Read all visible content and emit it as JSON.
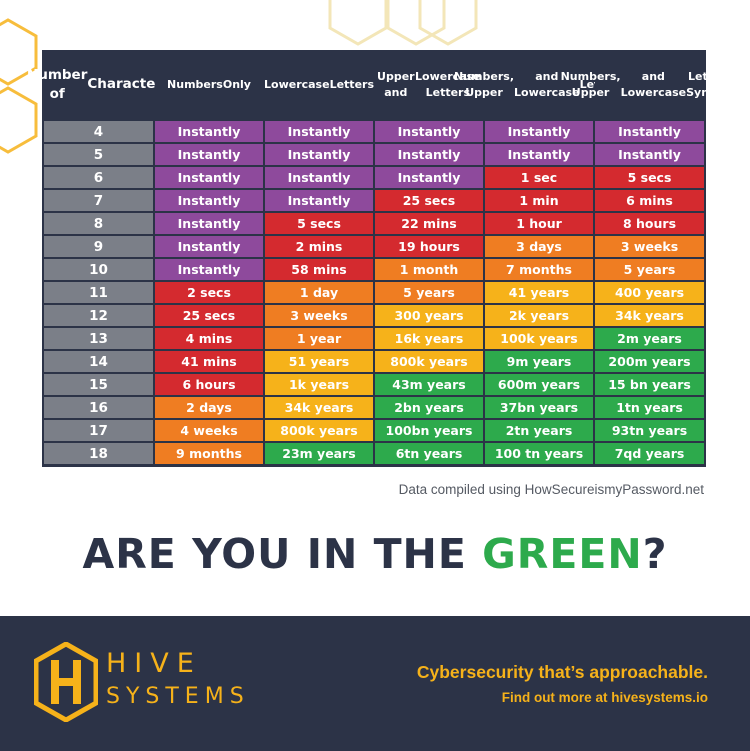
{
  "chart_data": {
    "type": "table",
    "title": "",
    "columns": [
      "Number of Characters",
      "Numbers Only",
      "Lowercase Letters",
      "Upper and Lowercase Letters",
      "Numbers, Upper and Lowercase Letters",
      "Numbers, Upper and Lowercase Letters, Symbols"
    ],
    "rows": [
      {
        "chars": "4",
        "values": [
          "Instantly",
          "Instantly",
          "Instantly",
          "Instantly",
          "Instantly"
        ],
        "colors": [
          "purple",
          "purple",
          "purple",
          "purple",
          "purple"
        ]
      },
      {
        "chars": "5",
        "values": [
          "Instantly",
          "Instantly",
          "Instantly",
          "Instantly",
          "Instantly"
        ],
        "colors": [
          "purple",
          "purple",
          "purple",
          "purple",
          "purple"
        ]
      },
      {
        "chars": "6",
        "values": [
          "Instantly",
          "Instantly",
          "Instantly",
          "1 sec",
          "5 secs"
        ],
        "colors": [
          "purple",
          "purple",
          "purple",
          "red",
          "red"
        ]
      },
      {
        "chars": "7",
        "values": [
          "Instantly",
          "Instantly",
          "25 secs",
          "1 min",
          "6 mins"
        ],
        "colors": [
          "purple",
          "purple",
          "red",
          "red",
          "red"
        ]
      },
      {
        "chars": "8",
        "values": [
          "Instantly",
          "5 secs",
          "22 mins",
          "1 hour",
          "8 hours"
        ],
        "colors": [
          "purple",
          "red",
          "red",
          "red",
          "red"
        ]
      },
      {
        "chars": "9",
        "values": [
          "Instantly",
          "2 mins",
          "19 hours",
          "3 days",
          "3 weeks"
        ],
        "colors": [
          "purple",
          "red",
          "red",
          "orange",
          "orange"
        ]
      },
      {
        "chars": "10",
        "values": [
          "Instantly",
          "58 mins",
          "1 month",
          "7 months",
          "5 years"
        ],
        "colors": [
          "purple",
          "red",
          "orange",
          "orange",
          "orange"
        ]
      },
      {
        "chars": "11",
        "values": [
          "2 secs",
          "1 day",
          "5 years",
          "41 years",
          "400 years"
        ],
        "colors": [
          "red",
          "orange",
          "orange",
          "yellow",
          "yellow"
        ]
      },
      {
        "chars": "12",
        "values": [
          "25 secs",
          "3 weeks",
          "300 years",
          "2k years",
          "34k years"
        ],
        "colors": [
          "red",
          "orange",
          "yellow",
          "yellow",
          "yellow"
        ]
      },
      {
        "chars": "13",
        "values": [
          "4 mins",
          "1 year",
          "16k years",
          "100k years",
          "2m years"
        ],
        "colors": [
          "red",
          "orange",
          "yellow",
          "yellow",
          "green"
        ]
      },
      {
        "chars": "14",
        "values": [
          "41 mins",
          "51 years",
          "800k years",
          "9m years",
          "200m years"
        ],
        "colors": [
          "red",
          "yellow",
          "yellow",
          "green",
          "green"
        ]
      },
      {
        "chars": "15",
        "values": [
          "6 hours",
          "1k years",
          "43m years",
          "600m years",
          "15 bn years"
        ],
        "colors": [
          "red",
          "yellow",
          "green",
          "green",
          "green"
        ]
      },
      {
        "chars": "16",
        "values": [
          "2 days",
          "34k years",
          "2bn years",
          "37bn years",
          "1tn years"
        ],
        "colors": [
          "orange",
          "yellow",
          "green",
          "green",
          "green"
        ]
      },
      {
        "chars": "17",
        "values": [
          "4 weeks",
          "800k years",
          "100bn years",
          "2tn years",
          "93tn years"
        ],
        "colors": [
          "orange",
          "yellow",
          "green",
          "green",
          "green"
        ]
      },
      {
        "chars": "18",
        "values": [
          "9 months",
          "23m years",
          "6tn years",
          "100 tn years",
          "7qd years"
        ],
        "colors": [
          "orange",
          "green",
          "green",
          "green",
          "green"
        ]
      }
    ],
    "color_scale": {
      "purple": "#8e4a9c",
      "red": "#d42a2f",
      "orange": "#ef7d22",
      "yellow": "#f6b21a",
      "green": "#2daa4c"
    }
  },
  "header_lines": [
    [
      "Number of",
      "Characters"
    ],
    [
      "Numbers",
      "Only"
    ],
    [
      "Lowercase",
      "Letters"
    ],
    [
      "Upper and",
      "Lowercase Letters"
    ],
    [
      "Numbers, Upper",
      "and Lowercase",
      "Letters"
    ],
    [
      "Numbers, Upper",
      "and Lowercase",
      "Letters, Symbols"
    ]
  ],
  "source_note": "Data compiled using HowSecureismyPassword.net",
  "headline": {
    "part1": "ARE YOU IN THE ",
    "part2": "GREEN",
    "part3": "?"
  },
  "footer": {
    "brand_line1": "HIVE",
    "brand_line2": "SYSTEMS",
    "tagline": "Cybersecurity that’s approachable.",
    "cta": "Find out more at hivesystems.io"
  },
  "colors": {
    "navy": "#2c3347",
    "accent_yellow": "#f6b21a",
    "accent_green": "#2daa4c",
    "row_label_gray": "#7b7f88"
  }
}
